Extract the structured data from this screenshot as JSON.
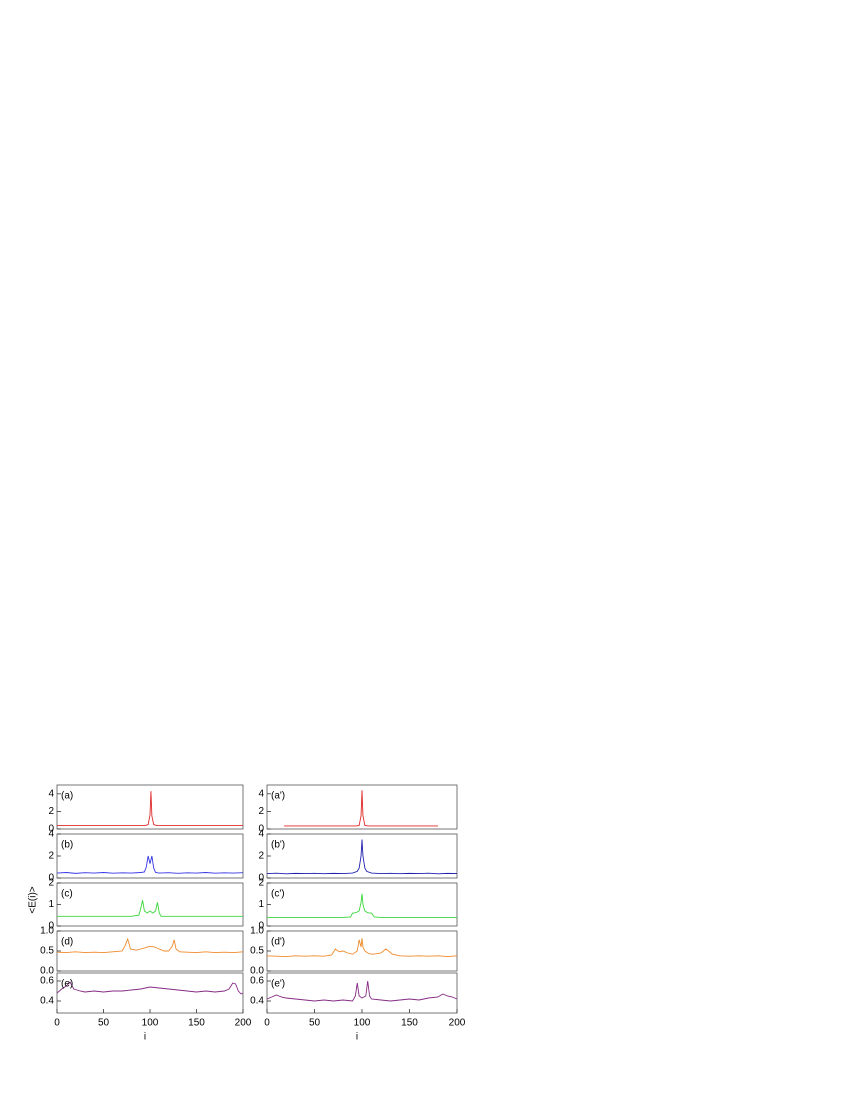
{
  "chart_data": [
    {
      "type": "line",
      "annotation": "(a)",
      "ylabel": "<E(i)>",
      "color": "#e02a2a",
      "x": [
        0,
        20,
        40,
        60,
        80,
        95,
        98,
        100,
        101,
        102,
        104,
        107,
        120,
        140,
        160,
        180,
        200
      ],
      "values": [
        0.4,
        0.4,
        0.4,
        0.4,
        0.4,
        0.4,
        0.5,
        1.6,
        4.3,
        1.5,
        0.5,
        0.4,
        0.4,
        0.4,
        0.4,
        0.4,
        0.4
      ],
      "xlim": [
        0,
        200
      ],
      "ylim": [
        0,
        5
      ],
      "yticks": [
        0,
        2,
        4
      ]
    },
    {
      "type": "line",
      "annotation": "(a')",
      "color": "#e02a2a",
      "x": [
        18,
        40,
        60,
        80,
        94,
        97,
        99,
        100,
        101,
        103,
        106,
        120,
        140,
        160,
        180
      ],
      "values": [
        0.35,
        0.35,
        0.35,
        0.35,
        0.35,
        0.4,
        1.5,
        4.4,
        1.5,
        0.4,
        0.35,
        0.35,
        0.35,
        0.35,
        0.35
      ],
      "xlim": [
        0,
        200
      ],
      "ylim": [
        0,
        5
      ],
      "yticks": [
        0,
        2,
        4
      ]
    },
    {
      "type": "line",
      "annotation": "(b)",
      "color": "#3535e6",
      "x": [
        0,
        10,
        20,
        30,
        40,
        50,
        60,
        70,
        80,
        90,
        94,
        96,
        98,
        100,
        102,
        104,
        106,
        110,
        120,
        130,
        140,
        150,
        160,
        170,
        180,
        190,
        200
      ],
      "values": [
        0.45,
        0.5,
        0.42,
        0.48,
        0.45,
        0.5,
        0.44,
        0.47,
        0.45,
        0.5,
        0.55,
        1.0,
        2.0,
        1.3,
        2.0,
        0.9,
        0.5,
        0.45,
        0.48,
        0.43,
        0.47,
        0.45,
        0.5,
        0.44,
        0.47,
        0.45,
        0.48
      ],
      "xlim": [
        0,
        200
      ],
      "ylim": [
        0,
        4
      ],
      "yticks": [
        0,
        2,
        4
      ]
    },
    {
      "type": "line",
      "annotation": "(b')",
      "color": "#2020b0",
      "x": [
        0,
        10,
        20,
        30,
        40,
        50,
        60,
        70,
        80,
        90,
        95,
        97,
        99,
        100,
        101,
        103,
        105,
        110,
        120,
        130,
        140,
        150,
        160,
        170,
        180,
        190,
        200
      ],
      "values": [
        0.4,
        0.44,
        0.38,
        0.42,
        0.4,
        0.43,
        0.39,
        0.42,
        0.4,
        0.45,
        0.6,
        0.9,
        2.0,
        3.5,
        2.0,
        0.9,
        0.6,
        0.45,
        0.4,
        0.43,
        0.39,
        0.42,
        0.4,
        0.44,
        0.38,
        0.42,
        0.4
      ],
      "xlim": [
        0,
        200
      ],
      "ylim": [
        0,
        4
      ],
      "yticks": [
        0,
        2,
        4
      ]
    },
    {
      "type": "line",
      "annotation": "(c)",
      "color": "#3ad63a",
      "x": [
        0,
        20,
        40,
        60,
        80,
        88,
        90,
        92,
        94,
        97,
        100,
        103,
        106,
        108,
        110,
        112,
        120,
        140,
        160,
        180,
        200
      ],
      "values": [
        0.45,
        0.45,
        0.45,
        0.45,
        0.45,
        0.5,
        0.8,
        1.2,
        0.7,
        0.6,
        0.7,
        0.6,
        0.7,
        1.1,
        0.6,
        0.45,
        0.45,
        0.45,
        0.45,
        0.45,
        0.45
      ],
      "xlim": [
        0,
        200
      ],
      "ylim": [
        0,
        2
      ],
      "yticks": [
        0,
        1,
        2
      ]
    },
    {
      "type": "line",
      "annotation": "(c')",
      "color": "#3ad63a",
      "x": [
        0,
        20,
        40,
        60,
        80,
        88,
        90,
        92,
        95,
        97,
        99,
        100,
        101,
        103,
        106,
        108,
        110,
        113,
        120,
        140,
        160,
        180,
        200
      ],
      "values": [
        0.4,
        0.4,
        0.4,
        0.4,
        0.4,
        0.42,
        0.6,
        0.6,
        0.65,
        0.7,
        1.1,
        1.5,
        1.0,
        0.7,
        0.62,
        0.6,
        0.6,
        0.42,
        0.4,
        0.4,
        0.4,
        0.4,
        0.4
      ],
      "xlim": [
        0,
        200
      ],
      "ylim": [
        0,
        2
      ],
      "yticks": [
        0,
        1,
        2
      ]
    },
    {
      "type": "line",
      "annotation": "(d)",
      "color": "#f08a2a",
      "x": [
        0,
        10,
        20,
        30,
        40,
        50,
        60,
        70,
        73,
        76,
        79,
        85,
        90,
        95,
        100,
        105,
        110,
        115,
        120,
        124,
        126,
        128,
        132,
        140,
        150,
        160,
        170,
        180,
        190,
        200
      ],
      "values": [
        0.47,
        0.46,
        0.48,
        0.46,
        0.47,
        0.46,
        0.48,
        0.5,
        0.62,
        0.8,
        0.55,
        0.52,
        0.55,
        0.58,
        0.62,
        0.6,
        0.55,
        0.5,
        0.5,
        0.62,
        0.78,
        0.55,
        0.48,
        0.47,
        0.46,
        0.48,
        0.46,
        0.47,
        0.46,
        0.48
      ],
      "xlim": [
        0,
        200
      ],
      "ylim": [
        0,
        1
      ],
      "yticks": [
        {
          "value": 0,
          "label": "0.0"
        },
        0.5,
        {
          "value": 1,
          "label": "1.0"
        }
      ]
    },
    {
      "type": "line",
      "annotation": "(d')",
      "color": "#f08a2a",
      "x": [
        0,
        10,
        20,
        30,
        40,
        50,
        60,
        68,
        72,
        76,
        80,
        85,
        90,
        95,
        97,
        99,
        100,
        101,
        103,
        106,
        110,
        115,
        120,
        125,
        128,
        132,
        140,
        150,
        160,
        170,
        180,
        190,
        200
      ],
      "values": [
        0.38,
        0.37,
        0.36,
        0.38,
        0.37,
        0.38,
        0.37,
        0.4,
        0.55,
        0.48,
        0.5,
        0.45,
        0.42,
        0.5,
        0.78,
        0.6,
        0.82,
        0.6,
        0.5,
        0.45,
        0.42,
        0.43,
        0.45,
        0.55,
        0.5,
        0.42,
        0.38,
        0.37,
        0.38,
        0.37,
        0.38,
        0.36,
        0.38
      ],
      "xlim": [
        0,
        200
      ],
      "ylim": [
        0,
        1
      ],
      "yticks": [
        {
          "value": 0,
          "label": "0.0"
        },
        0.5,
        {
          "value": 1,
          "label": "1.0"
        }
      ]
    },
    {
      "type": "line",
      "annotation": "(e)",
      "color": "#852a85",
      "xlabel": "i",
      "x": [
        0,
        5,
        10,
        14,
        18,
        25,
        30,
        40,
        50,
        60,
        70,
        80,
        90,
        100,
        110,
        120,
        130,
        140,
        150,
        160,
        170,
        180,
        185,
        189,
        192,
        195,
        198,
        200
      ],
      "values": [
        0.48,
        0.52,
        0.55,
        0.59,
        0.52,
        0.5,
        0.49,
        0.5,
        0.49,
        0.5,
        0.5,
        0.51,
        0.52,
        0.54,
        0.53,
        0.52,
        0.51,
        0.5,
        0.49,
        0.5,
        0.49,
        0.5,
        0.52,
        0.58,
        0.57,
        0.5,
        0.47,
        0.48
      ],
      "xlim": [
        0,
        200
      ],
      "ylim": [
        0.28,
        0.68
      ],
      "yticks": [
        0.4,
        0.6
      ],
      "xticks": [
        0,
        50,
        100,
        150,
        200
      ]
    },
    {
      "type": "line",
      "annotation": "(e')",
      "color": "#852a85",
      "xlabel": "i",
      "x": [
        0,
        5,
        10,
        15,
        20,
        30,
        40,
        50,
        60,
        70,
        80,
        90,
        93,
        95,
        97,
        100,
        104,
        106,
        108,
        110,
        120,
        130,
        140,
        150,
        160,
        170,
        180,
        185,
        190,
        195,
        200
      ],
      "values": [
        0.42,
        0.44,
        0.46,
        0.44,
        0.43,
        0.42,
        0.41,
        0.4,
        0.41,
        0.4,
        0.41,
        0.4,
        0.45,
        0.58,
        0.45,
        0.43,
        0.45,
        0.6,
        0.45,
        0.42,
        0.41,
        0.4,
        0.41,
        0.42,
        0.41,
        0.43,
        0.44,
        0.47,
        0.45,
        0.44,
        0.42
      ],
      "xlim": [
        0,
        200
      ],
      "ylim": [
        0.28,
        0.68
      ],
      "yticks": [
        0.4,
        0.6
      ],
      "xticks": [
        0,
        50,
        100,
        150,
        200
      ]
    }
  ]
}
